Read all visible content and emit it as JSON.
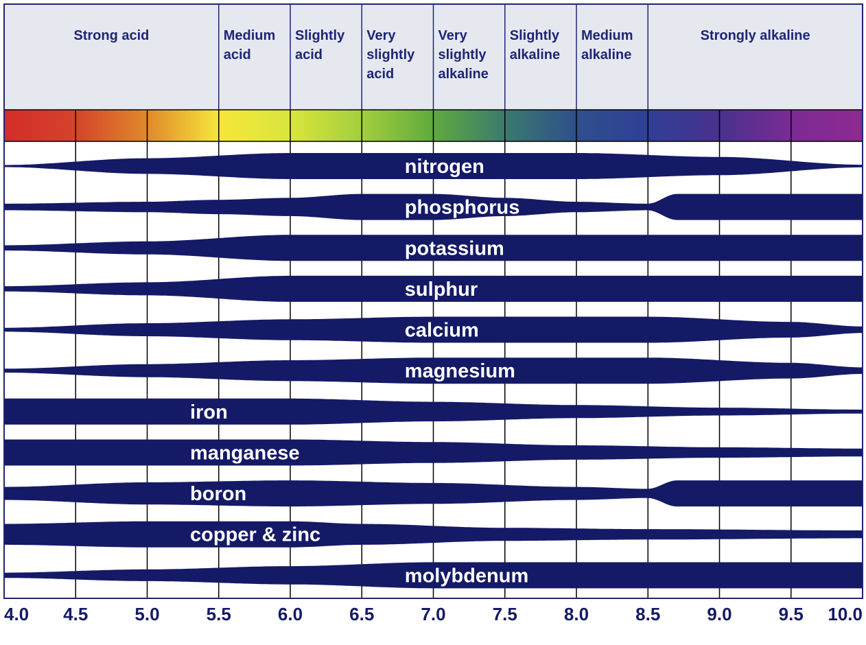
{
  "chart_data": {
    "type": "area",
    "x_ticks": [
      "4.0",
      "4.5",
      "5.0",
      "5.5",
      "6.0",
      "6.5",
      "7.0",
      "7.5",
      "8.0",
      "8.5",
      "9.0",
      "9.5",
      "10.0"
    ],
    "xlim": [
      4.0,
      10.0
    ],
    "grid": true,
    "colors": {
      "band": "#141a66",
      "grid": "#1e2575",
      "header_bg": "#e6e8f0",
      "spectrum": [
        "#d32d2a",
        "#d4432a",
        "#e0892b",
        "#f6e63a",
        "#d9e53c",
        "#a2cf3d",
        "#5faa3e",
        "#3a7a6e",
        "#2e4f8c",
        "#303f96",
        "#49318e",
        "#7a2b93",
        "#8e2a90"
      ]
    },
    "categories": [
      {
        "label": [
          "Strong acid"
        ],
        "from": 4.0,
        "to": 5.5
      },
      {
        "label": [
          "Medium",
          "acid"
        ],
        "from": 5.5,
        "to": 6.0
      },
      {
        "label": [
          "Slightly",
          "acid"
        ],
        "from": 6.0,
        "to": 6.5
      },
      {
        "label": [
          "Very",
          "slightly",
          "acid"
        ],
        "from": 6.5,
        "to": 7.0
      },
      {
        "label": [
          "Very",
          "slightly",
          "alkaline"
        ],
        "from": 7.0,
        "to": 7.5
      },
      {
        "label": [
          "Slightly",
          "alkaline"
        ],
        "from": 7.5,
        "to": 8.0
      },
      {
        "label": [
          "Medium",
          "alkaline"
        ],
        "from": 8.0,
        "to": 8.5
      },
      {
        "label": [
          "Strongly alkaline"
        ],
        "from": 8.5,
        "to": 10.0
      }
    ],
    "series": [
      {
        "name": "nitrogen",
        "x": [
          4.0,
          5.0,
          6.0,
          6.5,
          8.0,
          9.0,
          10.0
        ],
        "availability": [
          0.08,
          0.6,
          1.0,
          1.0,
          1.0,
          0.7,
          0.1
        ]
      },
      {
        "name": "phosphorus",
        "x": [
          4.0,
          5.0,
          5.5,
          6.0,
          6.5,
          7.0,
          7.5,
          8.0,
          8.5,
          8.7,
          10.0
        ],
        "availability": [
          0.25,
          0.4,
          0.55,
          0.7,
          1.0,
          1.0,
          0.7,
          0.4,
          0.25,
          1.0,
          1.0
        ]
      },
      {
        "name": "potassium",
        "x": [
          4.0,
          5.0,
          6.0,
          6.5,
          10.0
        ],
        "availability": [
          0.2,
          0.5,
          1.0,
          1.0,
          1.0
        ]
      },
      {
        "name": "sulphur",
        "x": [
          4.0,
          5.0,
          6.0,
          6.5,
          10.0
        ],
        "availability": [
          0.2,
          0.5,
          1.0,
          1.0,
          1.0
        ]
      },
      {
        "name": "calcium",
        "x": [
          4.0,
          5.0,
          6.0,
          7.0,
          8.5,
          9.5,
          10.0
        ],
        "availability": [
          0.15,
          0.5,
          0.8,
          1.0,
          1.0,
          0.6,
          0.25
        ]
      },
      {
        "name": "magnesium",
        "x": [
          4.0,
          5.0,
          6.0,
          7.0,
          8.5,
          9.5,
          10.0
        ],
        "availability": [
          0.15,
          0.5,
          0.8,
          1.0,
          1.0,
          0.6,
          0.25
        ]
      },
      {
        "name": "iron",
        "x": [
          4.0,
          5.0,
          6.0,
          7.0,
          8.0,
          9.0,
          10.0
        ],
        "availability": [
          1.0,
          1.0,
          1.0,
          0.75,
          0.5,
          0.3,
          0.15
        ]
      },
      {
        "name": "manganese",
        "x": [
          4.0,
          5.0,
          6.0,
          7.0,
          8.0,
          9.0,
          10.0
        ],
        "availability": [
          1.0,
          1.0,
          1.0,
          0.8,
          0.55,
          0.4,
          0.3
        ]
      },
      {
        "name": "boron",
        "x": [
          4.0,
          5.0,
          6.0,
          7.0,
          8.0,
          8.5,
          8.7,
          10.0
        ],
        "availability": [
          0.5,
          0.85,
          1.0,
          0.8,
          0.5,
          0.35,
          1.0,
          1.0
        ]
      },
      {
        "name": "copper & zinc",
        "x": [
          4.0,
          5.0,
          6.0,
          6.5,
          7.5,
          8.5,
          10.0
        ],
        "availability": [
          0.8,
          1.0,
          1.0,
          0.8,
          0.5,
          0.4,
          0.3
        ]
      },
      {
        "name": "molybdenum",
        "x": [
          4.0,
          5.0,
          6.0,
          7.0,
          8.0,
          10.0
        ],
        "availability": [
          0.2,
          0.45,
          0.7,
          1.0,
          1.0,
          1.0
        ]
      }
    ],
    "label_positions": {
      "nitrogen": 6.8,
      "phosphorus": 6.8,
      "potassium": 6.8,
      "sulphur": 6.8,
      "calcium": 6.8,
      "magnesium": 6.8,
      "iron": 5.3,
      "manganese": 5.3,
      "boron": 5.3,
      "copper & zinc": 5.3,
      "molybdenum": 6.8
    }
  }
}
